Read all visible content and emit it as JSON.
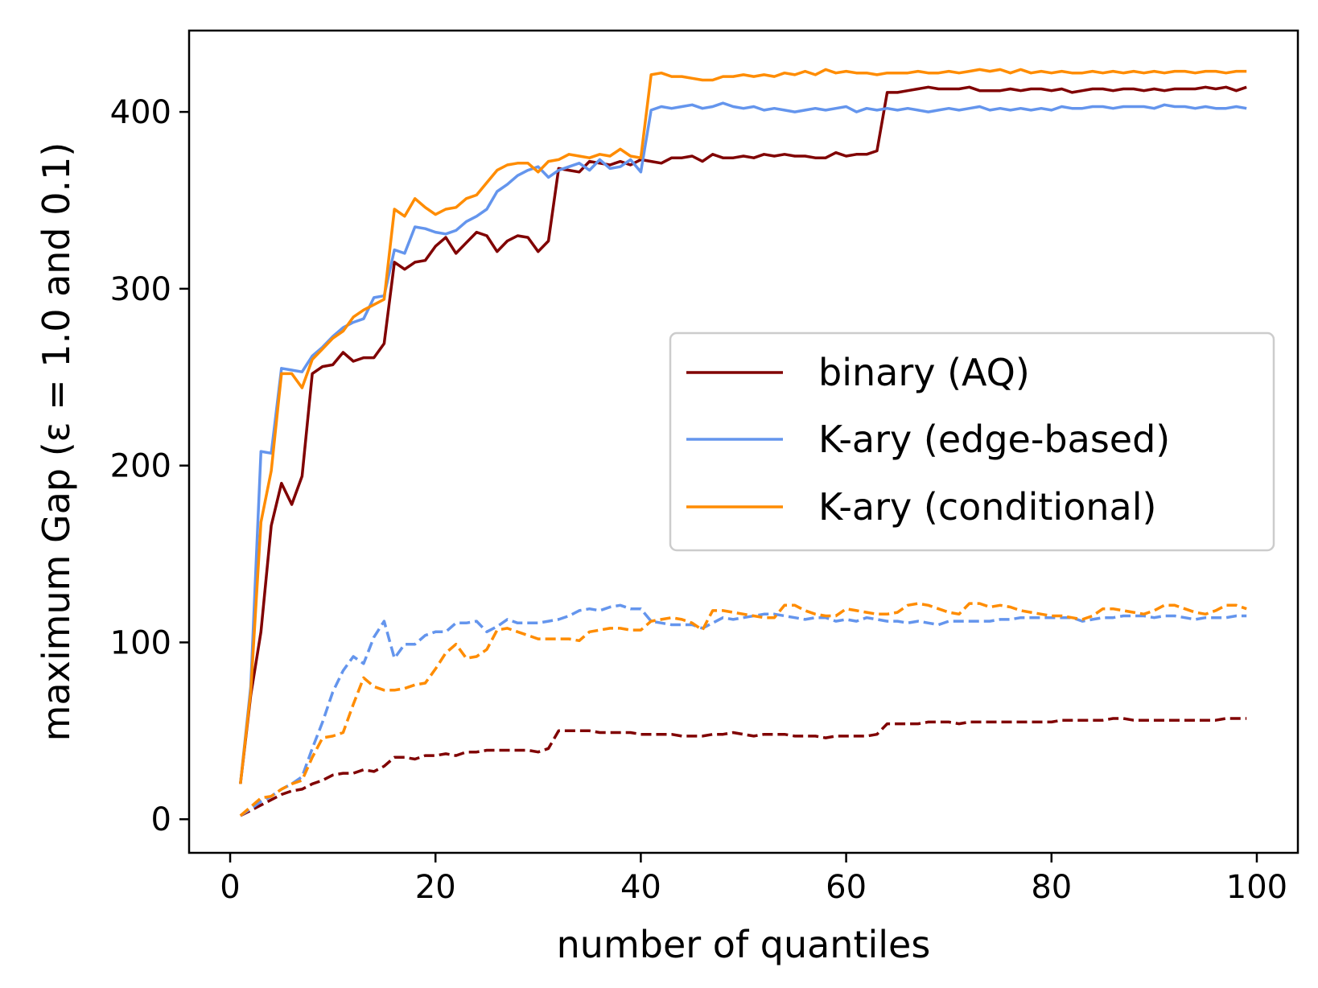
{
  "chart_data": {
    "type": "line",
    "title": "",
    "xlabel": "number of quantiles",
    "ylabel": "maximum Gap (ε = 1.0 and 0.1)",
    "xlim": [
      -4,
      104
    ],
    "ylim": [
      -19,
      446
    ],
    "xticks": [
      0,
      20,
      40,
      60,
      80,
      100
    ],
    "yticks": [
      0,
      100,
      200,
      300,
      400
    ],
    "grid": false,
    "legend_position": "center-right",
    "legend": [
      {
        "name": "binary (AQ)",
        "color": "#800000"
      },
      {
        "name": "K-ary (edge-based)",
        "color": "#6495ED"
      },
      {
        "name": "K-ary (conditional)",
        "color": "#FF8C00"
      }
    ],
    "series": [
      {
        "name": "binary (AQ)",
        "epsilon": "1.0",
        "style": "solid",
        "color": "#800000",
        "x": [
          1,
          2,
          3,
          4,
          5,
          6,
          7,
          8,
          9,
          10,
          11,
          12,
          13,
          14,
          15,
          16,
          17,
          18,
          19,
          20,
          21,
          22,
          23,
          24,
          25,
          26,
          27,
          28,
          29,
          30,
          31,
          32,
          33,
          34,
          35,
          36,
          37,
          38,
          39,
          40,
          41,
          42,
          43,
          44,
          45,
          46,
          47,
          48,
          49,
          50,
          51,
          52,
          53,
          54,
          55,
          56,
          57,
          58,
          59,
          60,
          61,
          62,
          63,
          64,
          65,
          66,
          67,
          68,
          69,
          70,
          71,
          72,
          73,
          74,
          75,
          76,
          77,
          78,
          79,
          80,
          81,
          82,
          83,
          84,
          85,
          86,
          87,
          88,
          89,
          90,
          91,
          92,
          93,
          94,
          95,
          96,
          97,
          98,
          99
        ],
        "values": [
          20,
          70,
          106,
          166,
          190,
          178,
          194,
          252,
          256,
          257,
          264,
          259,
          261,
          261,
          269,
          315,
          311,
          315,
          316,
          324,
          329,
          320,
          326,
          332,
          330,
          321,
          327,
          330,
          329,
          321,
          327,
          368,
          367,
          366,
          372,
          371,
          370,
          372,
          370,
          373,
          372,
          371,
          374,
          374,
          375,
          372,
          376,
          374,
          374,
          375,
          374,
          376,
          375,
          376,
          375,
          375,
          374,
          374,
          377,
          375,
          376,
          376,
          378,
          411,
          411,
          412,
          413,
          414,
          413,
          413,
          413,
          414,
          412,
          412,
          412,
          413,
          412,
          413,
          413,
          412,
          413,
          411,
          412,
          413,
          413,
          412,
          413,
          413,
          412,
          413,
          412,
          413,
          413,
          413,
          414,
          413,
          414,
          412,
          414
        ]
      },
      {
        "name": "K-ary (edge-based)",
        "epsilon": "1.0",
        "style": "solid",
        "color": "#6495ED",
        "x": [
          1,
          2,
          3,
          4,
          5,
          6,
          7,
          8,
          9,
          10,
          11,
          12,
          13,
          14,
          15,
          16,
          17,
          18,
          19,
          20,
          21,
          22,
          23,
          24,
          25,
          26,
          27,
          28,
          29,
          30,
          31,
          32,
          33,
          34,
          35,
          36,
          37,
          38,
          39,
          40,
          41,
          42,
          43,
          44,
          45,
          46,
          47,
          48,
          49,
          50,
          51,
          52,
          53,
          54,
          55,
          56,
          57,
          58,
          59,
          60,
          61,
          62,
          63,
          64,
          65,
          66,
          67,
          68,
          69,
          70,
          71,
          72,
          73,
          74,
          75,
          76,
          77,
          78,
          79,
          80,
          81,
          82,
          83,
          84,
          85,
          86,
          87,
          88,
          89,
          90,
          91,
          92,
          93,
          94,
          95,
          96,
          97,
          98,
          99
        ],
        "values": [
          20,
          75,
          208,
          207,
          255,
          254,
          253,
          262,
          267,
          273,
          278,
          281,
          283,
          295,
          296,
          322,
          320,
          335,
          334,
          332,
          331,
          333,
          338,
          341,
          345,
          355,
          359,
          364,
          367,
          369,
          363,
          367,
          369,
          371,
          367,
          373,
          368,
          369,
          373,
          366,
          401,
          403,
          402,
          403,
          404,
          402,
          403,
          405,
          403,
          402,
          403,
          401,
          402,
          401,
          400,
          401,
          402,
          401,
          402,
          403,
          400,
          402,
          401,
          402,
          401,
          402,
          401,
          400,
          401,
          402,
          401,
          402,
          403,
          401,
          402,
          401,
          402,
          401,
          402,
          401,
          403,
          402,
          402,
          403,
          403,
          402,
          403,
          403,
          403,
          402,
          404,
          403,
          403,
          402,
          403,
          402,
          402,
          403,
          402
        ]
      },
      {
        "name": "K-ary (conditional)",
        "epsilon": "1.0",
        "style": "solid",
        "color": "#FF8C00",
        "x": [
          1,
          2,
          3,
          4,
          5,
          6,
          7,
          8,
          9,
          10,
          11,
          12,
          13,
          14,
          15,
          16,
          17,
          18,
          19,
          20,
          21,
          22,
          23,
          24,
          25,
          26,
          27,
          28,
          29,
          30,
          31,
          32,
          33,
          34,
          35,
          36,
          37,
          38,
          39,
          40,
          41,
          42,
          43,
          44,
          45,
          46,
          47,
          48,
          49,
          50,
          51,
          52,
          53,
          54,
          55,
          56,
          57,
          58,
          59,
          60,
          61,
          62,
          63,
          64,
          65,
          66,
          67,
          68,
          69,
          70,
          71,
          72,
          73,
          74,
          75,
          76,
          77,
          78,
          79,
          80,
          81,
          82,
          83,
          84,
          85,
          86,
          87,
          88,
          89,
          90,
          91,
          92,
          93,
          94,
          95,
          96,
          97,
          98,
          99
        ],
        "values": [
          20,
          72,
          168,
          197,
          252,
          252,
          244,
          260,
          266,
          272,
          276,
          284,
          288,
          291,
          294,
          345,
          341,
          351,
          346,
          342,
          345,
          346,
          351,
          353,
          360,
          367,
          370,
          371,
          371,
          366,
          372,
          373,
          376,
          375,
          374,
          376,
          375,
          379,
          375,
          374,
          421,
          422,
          420,
          420,
          419,
          418,
          418,
          420,
          420,
          421,
          420,
          421,
          420,
          422,
          421,
          423,
          421,
          424,
          422,
          423,
          422,
          422,
          421,
          422,
          422,
          422,
          423,
          422,
          422,
          423,
          422,
          423,
          424,
          423,
          424,
          422,
          424,
          422,
          423,
          422,
          423,
          422,
          422,
          423,
          422,
          423,
          422,
          423,
          422,
          423,
          422,
          423,
          423,
          422,
          423,
          423,
          422,
          423,
          423
        ]
      },
      {
        "name": "binary (AQ)",
        "epsilon": "0.1",
        "style": "dashed",
        "color": "#800000",
        "x": [
          1,
          2,
          3,
          4,
          5,
          6,
          7,
          8,
          9,
          10,
          11,
          12,
          13,
          14,
          15,
          16,
          17,
          18,
          19,
          20,
          21,
          22,
          23,
          24,
          25,
          26,
          27,
          28,
          29,
          30,
          31,
          32,
          33,
          34,
          35,
          36,
          37,
          38,
          39,
          40,
          41,
          42,
          43,
          44,
          45,
          46,
          47,
          48,
          49,
          50,
          51,
          52,
          53,
          54,
          55,
          56,
          57,
          58,
          59,
          60,
          61,
          62,
          63,
          64,
          65,
          66,
          67,
          68,
          69,
          70,
          71,
          72,
          73,
          74,
          75,
          76,
          77,
          78,
          79,
          80,
          81,
          82,
          83,
          84,
          85,
          86,
          87,
          88,
          89,
          90,
          91,
          92,
          93,
          94,
          95,
          96,
          97,
          98,
          99
        ],
        "values": [
          2,
          5,
          8,
          11,
          14,
          16,
          17,
          20,
          22,
          25,
          26,
          26,
          28,
          27,
          30,
          35,
          35,
          34,
          36,
          36,
          37,
          36,
          38,
          38,
          39,
          39,
          39,
          39,
          39,
          38,
          40,
          50,
          50,
          50,
          50,
          49,
          49,
          49,
          49,
          48,
          48,
          48,
          48,
          47,
          47,
          47,
          48,
          48,
          49,
          48,
          47,
          48,
          48,
          48,
          47,
          47,
          47,
          46,
          47,
          47,
          47,
          47,
          48,
          54,
          54,
          54,
          54,
          55,
          55,
          55,
          54,
          55,
          55,
          55,
          55,
          55,
          55,
          55,
          55,
          55,
          56,
          56,
          56,
          56,
          56,
          57,
          57,
          56,
          56,
          56,
          56,
          56,
          56,
          56,
          56,
          56,
          57,
          57,
          57
        ]
      },
      {
        "name": "K-ary (edge-based)",
        "epsilon": "0.1",
        "style": "dashed",
        "color": "#6495ED",
        "x": [
          1,
          2,
          3,
          4,
          5,
          6,
          7,
          8,
          9,
          10,
          11,
          12,
          13,
          14,
          15,
          16,
          17,
          18,
          19,
          20,
          21,
          22,
          23,
          24,
          25,
          26,
          27,
          28,
          29,
          30,
          31,
          32,
          33,
          34,
          35,
          36,
          37,
          38,
          39,
          40,
          41,
          42,
          43,
          44,
          45,
          46,
          47,
          48,
          49,
          50,
          51,
          52,
          53,
          54,
          55,
          56,
          57,
          58,
          59,
          60,
          61,
          62,
          63,
          64,
          65,
          66,
          67,
          68,
          69,
          70,
          71,
          72,
          73,
          74,
          75,
          76,
          77,
          78,
          79,
          80,
          81,
          82,
          83,
          84,
          85,
          86,
          87,
          88,
          89,
          90,
          91,
          92,
          93,
          94,
          95,
          96,
          97,
          98,
          99
        ],
        "values": [
          2,
          6,
          10,
          13,
          17,
          20,
          24,
          40,
          55,
          72,
          84,
          92,
          88,
          103,
          112,
          91,
          99,
          99,
          104,
          106,
          106,
          111,
          111,
          112,
          106,
          109,
          113,
          111,
          111,
          111,
          112,
          113,
          115,
          118,
          119,
          118,
          120,
          121,
          119,
          119,
          112,
          111,
          110,
          110,
          110,
          108,
          111,
          114,
          113,
          114,
          115,
          116,
          116,
          115,
          114,
          113,
          114,
          114,
          112,
          113,
          112,
          114,
          113,
          112,
          112,
          111,
          112,
          111,
          110,
          112,
          112,
          112,
          112,
          112,
          113,
          113,
          114,
          114,
          114,
          114,
          114,
          114,
          112,
          113,
          114,
          114,
          115,
          115,
          115,
          114,
          115,
          115,
          114,
          113,
          114,
          114,
          114,
          115,
          115
        ]
      },
      {
        "name": "K-ary (conditional)",
        "epsilon": "0.1",
        "style": "dashed",
        "color": "#FF8C00",
        "x": [
          1,
          2,
          3,
          4,
          5,
          6,
          7,
          8,
          9,
          10,
          11,
          12,
          13,
          14,
          15,
          16,
          17,
          18,
          19,
          20,
          21,
          22,
          23,
          24,
          25,
          26,
          27,
          28,
          29,
          30,
          31,
          32,
          33,
          34,
          35,
          36,
          37,
          38,
          39,
          40,
          41,
          42,
          43,
          44,
          45,
          46,
          47,
          48,
          49,
          50,
          51,
          52,
          53,
          54,
          55,
          56,
          57,
          58,
          59,
          60,
          61,
          62,
          63,
          64,
          65,
          66,
          67,
          68,
          69,
          70,
          71,
          72,
          73,
          74,
          75,
          76,
          77,
          78,
          79,
          80,
          81,
          82,
          83,
          84,
          85,
          86,
          87,
          88,
          89,
          90,
          91,
          92,
          93,
          94,
          95,
          96,
          97,
          98,
          99
        ],
        "values": [
          2,
          7,
          12,
          13,
          17,
          20,
          22,
          35,
          46,
          47,
          49,
          65,
          80,
          75,
          73,
          73,
          74,
          76,
          77,
          85,
          94,
          99,
          91,
          92,
          96,
          107,
          108,
          106,
          104,
          102,
          102,
          102,
          102,
          101,
          106,
          107,
          108,
          108,
          107,
          107,
          112,
          113,
          114,
          113,
          111,
          107,
          118,
          118,
          117,
          116,
          115,
          114,
          114,
          121,
          121,
          118,
          116,
          115,
          115,
          119,
          118,
          117,
          116,
          116,
          117,
          121,
          122,
          121,
          119,
          117,
          116,
          122,
          122,
          120,
          121,
          120,
          118,
          117,
          116,
          115,
          115,
          114,
          113,
          115,
          119,
          119,
          118,
          117,
          116,
          118,
          121,
          121,
          119,
          117,
          116,
          118,
          121,
          121,
          119
        ]
      }
    ]
  }
}
